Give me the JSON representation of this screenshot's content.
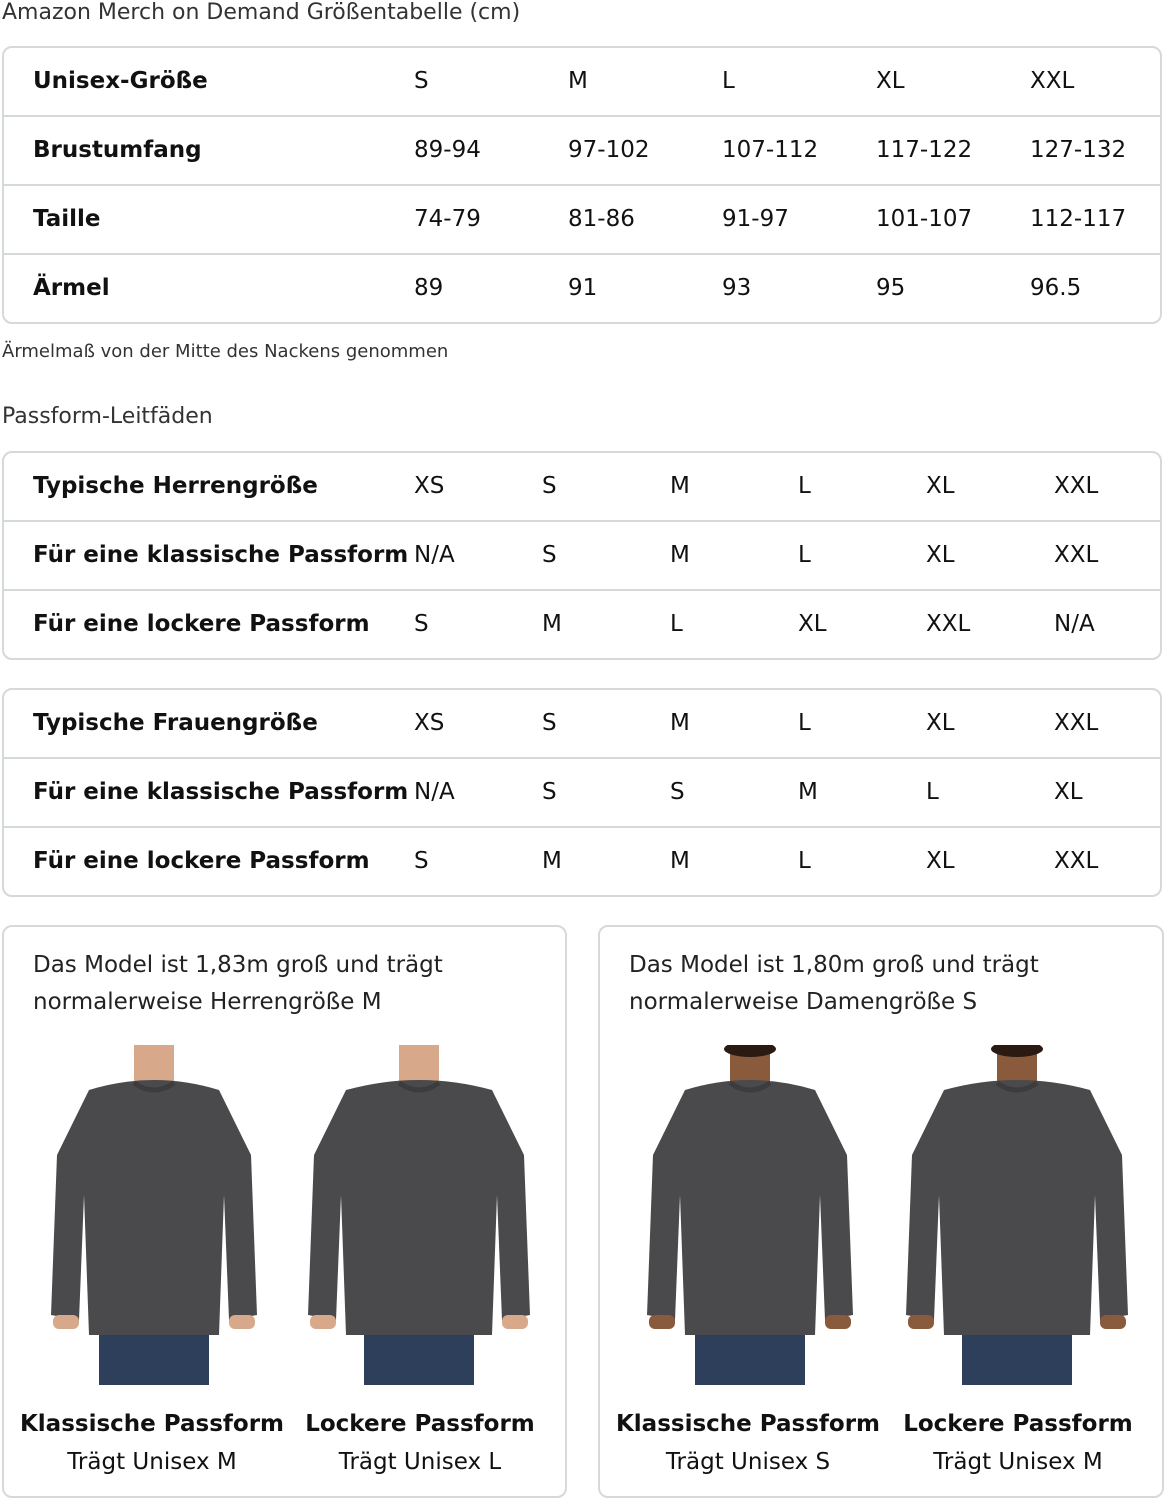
{
  "title": "Amazon Merch on Demand Größentabelle (cm)",
  "unisex_table": {
    "rows": [
      {
        "label": "Unisex-Größe",
        "values": [
          "S",
          "M",
          "L",
          "XL",
          "XXL"
        ]
      },
      {
        "label": "Brustumfang",
        "values": [
          "89-94",
          "97-102",
          "107-112",
          "117-122",
          "127-132"
        ]
      },
      {
        "label": "Taille",
        "values": [
          "74-79",
          "81-86",
          "91-97",
          "101-107",
          "112-117"
        ]
      },
      {
        "label": "Ärmel",
        "values": [
          "89",
          "91",
          "93",
          "95",
          "96.5"
        ]
      }
    ]
  },
  "note": "Ärmelmaß von der Mitte des Nackens genommen",
  "fit_heading": "Passform-Leitfäden",
  "men_table": {
    "rows": [
      {
        "label": "Typische Herrengröße",
        "values": [
          "XS",
          "S",
          "M",
          "L",
          "XL",
          "XXL"
        ]
      },
      {
        "label": "Für eine klassische Passform",
        "values": [
          "N/A",
          "S",
          "M",
          "L",
          "XL",
          "XXL"
        ]
      },
      {
        "label": "Für eine lockere Passform",
        "values": [
          "S",
          "M",
          "L",
          "XL",
          "XXL",
          "N/A"
        ]
      }
    ]
  },
  "women_table": {
    "rows": [
      {
        "label": "Typische Frauengröße",
        "values": [
          "XS",
          "S",
          "M",
          "L",
          "XL",
          "XXL"
        ]
      },
      {
        "label": "Für eine klassische Passform",
        "values": [
          "N/A",
          "S",
          "S",
          "M",
          "L",
          "XL"
        ]
      },
      {
        "label": "Für eine lockere Passform",
        "values": [
          "S",
          "M",
          "M",
          "L",
          "XL",
          "XXL"
        ]
      }
    ]
  },
  "cards": [
    {
      "description": "Das Model ist 1,83m groß und trägt normalerweise Herrengröße M",
      "figures": [
        {
          "fit": "Klassische Passform",
          "wears": "Trägt Unisex M"
        },
        {
          "fit": "Lockere Passform",
          "wears": "Trägt Unisex L"
        }
      ]
    },
    {
      "description": "Das Model ist 1,80m groß und trägt normalerweise Damengröße S",
      "figures": [
        {
          "fit": "Klassische Passform",
          "wears": "Trägt Unisex S"
        },
        {
          "fit": "Lockere Passform",
          "wears": "Trägt Unisex M"
        }
      ]
    }
  ],
  "colors": {
    "border": "#d5d9d9",
    "sweatshirt": "#4a4a4c",
    "jeans": "#2e3f5c"
  }
}
